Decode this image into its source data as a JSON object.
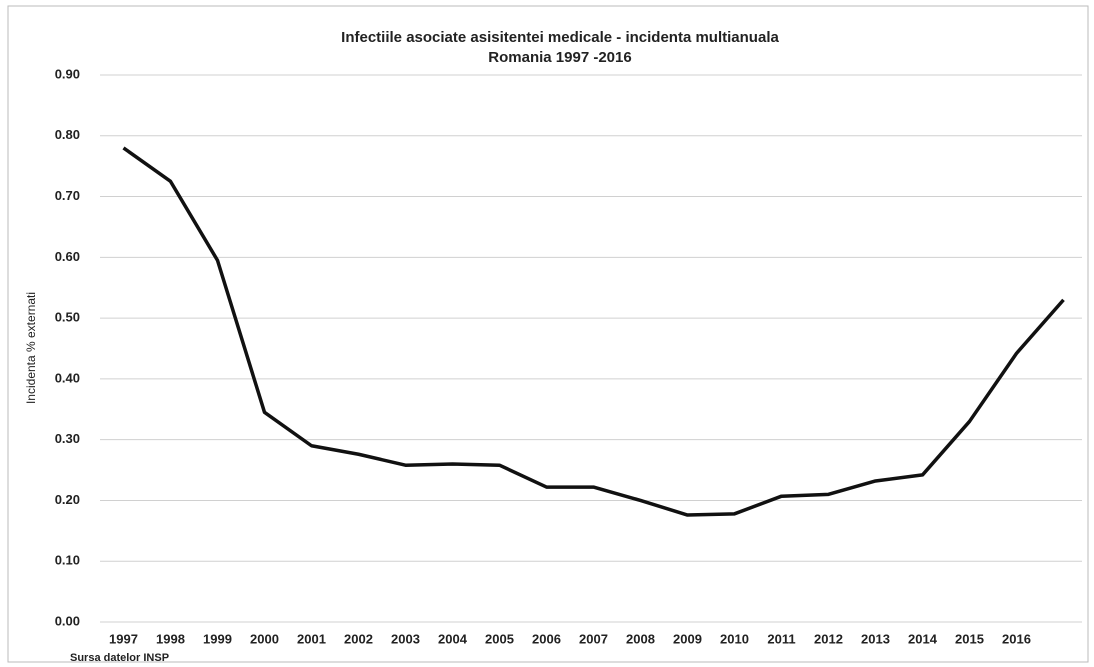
{
  "chart_data": {
    "type": "line",
    "title": "Infectiile asociate asisitentei medicale - incidenta multianuala",
    "subtitle": "Romania 1997 -2016",
    "y_label": "Incidenta % externati",
    "source": "Sursa datelor INSP",
    "categories": [
      "1997",
      "1998",
      "1999",
      "2000",
      "2001",
      "2002",
      "2003",
      "2004",
      "2005",
      "2006",
      "2007",
      "2008",
      "2009",
      "2010",
      "2011",
      "2012",
      "2013",
      "2014",
      "2015",
      "2016",
      null
    ],
    "values": [
      0.78,
      0.725,
      0.595,
      0.345,
      0.29,
      0.276,
      0.258,
      0.26,
      0.258,
      0.222,
      0.222,
      0.2,
      0.176,
      0.178,
      0.207,
      0.21,
      0.232,
      0.242,
      0.33,
      0.442,
      0.53
    ],
    "color": "#111111",
    "ylim": [
      0,
      0.9
    ],
    "yticks": [
      {
        "value": 0,
        "label": "0.00"
      },
      {
        "value": 0.1,
        "label": "0.10"
      },
      {
        "value": 0.2,
        "label": "0.20"
      },
      {
        "value": 0.3,
        "label": "0.30"
      },
      {
        "value": 0.4,
        "label": "0.40"
      },
      {
        "value": 0.5,
        "label": "0.50"
      },
      {
        "value": 0.6,
        "label": "0.60"
      },
      {
        "value": 0.7,
        "label": "0.70"
      },
      {
        "value": 0.8,
        "label": "0.80"
      },
      {
        "value": 0.9,
        "label": "0.90"
      }
    ],
    "grid": true
  }
}
